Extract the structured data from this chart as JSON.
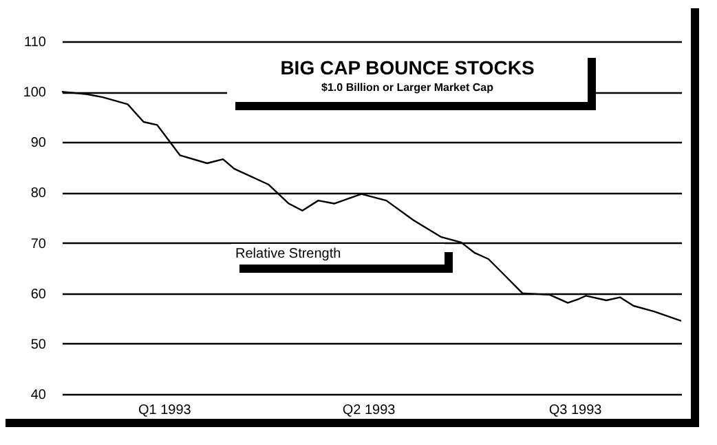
{
  "chart_data": {
    "type": "line",
    "title": "BIG CAP BOUNCE STOCKS",
    "subtitle": "$1.0 Billion or Larger Market Cap",
    "x": [
      "1993-01-01",
      "1993-01-12",
      "1993-01-19",
      "1993-01-30",
      "1993-02-06",
      "1993-02-12",
      "1993-02-22",
      "1993-03-06",
      "1993-03-13",
      "1993-03-18",
      "1993-04-02",
      "1993-04-11",
      "1993-04-17",
      "1993-04-24",
      "1993-05-01",
      "1993-05-13",
      "1993-05-24",
      "1993-06-05",
      "1993-06-17",
      "1993-06-26",
      "1993-07-02",
      "1993-07-08",
      "1993-07-14",
      "1993-07-23",
      "1993-08-04",
      "1993-08-12",
      "1993-08-17",
      "1993-08-20",
      "1993-08-29",
      "1993-09-04",
      "1993-09-10",
      "1993-09-19",
      "1993-10-01"
    ],
    "series": [
      {
        "name": "Relative Strength",
        "color": "#000000",
        "values": [
          100,
          99.5,
          98.9,
          97.5,
          94,
          93.4,
          87.4,
          85.8,
          86.6,
          84.7,
          81.6,
          77.8,
          76.4,
          78.4,
          77.8,
          79.7,
          78.4,
          74.5,
          71.2,
          70.1,
          68,
          66.8,
          64.1,
          60,
          59.7,
          58.1,
          58.9,
          59.5,
          58.6,
          59.2,
          57.5,
          56.4,
          54.5
        ]
      }
    ],
    "xlim": [
      "1993-01-01",
      "1993-10-01"
    ],
    "xticks": [
      {
        "value": "1993-02-15",
        "label": "Q1 1993"
      },
      {
        "value": "1993-05-16",
        "label": "Q2 1993"
      },
      {
        "value": "1993-08-15",
        "label": "Q3 1993"
      }
    ],
    "ylim": [
      40,
      110
    ],
    "yticks": [
      40,
      50,
      60,
      70,
      80,
      90,
      100,
      110
    ],
    "grid": "y",
    "line_style": "solid",
    "marker": "none"
  }
}
